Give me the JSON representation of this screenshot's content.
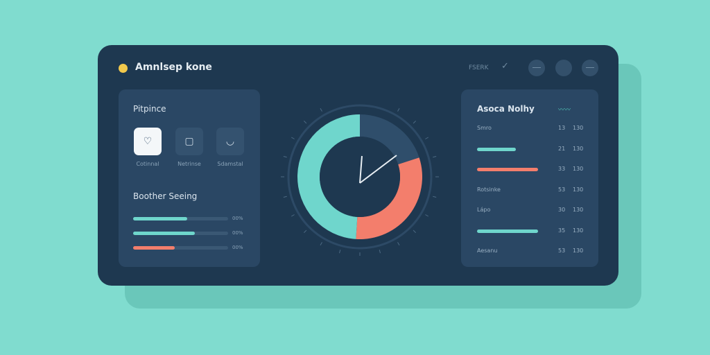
{
  "app": {
    "title": "Amnlsep kone",
    "status": "FSERK",
    "colors": {
      "background": "#80dccf",
      "card": "#1e3850",
      "panel": "#2a4764",
      "teal": "#6fd6cc",
      "coral": "#f37e6c",
      "yellow": "#f2c94c"
    }
  },
  "header": {
    "icons": [
      "check-icon",
      "circle-button",
      "circle-button",
      "circle-button"
    ]
  },
  "left_panel": {
    "title": "Pitpince",
    "tiles": [
      {
        "label": "Cotinnal",
        "icon": "heart-outline-icon",
        "active": true
      },
      {
        "label": "Netrinse",
        "icon": "device-icon",
        "active": false
      },
      {
        "label": "Sdamstal",
        "icon": "wave-icon",
        "active": false
      }
    ],
    "section_title": "Boother Seeing",
    "bars": [
      {
        "value": 0.57,
        "color": "#6fd6cc",
        "label": "00%"
      },
      {
        "value": 0.65,
        "color": "#6fd6cc",
        "label": "00%"
      },
      {
        "value": 0.44,
        "color": "#f37e6c",
        "label": "00%"
      }
    ]
  },
  "dial": {
    "segments": [
      {
        "color": "#2f4e6b",
        "fraction": 0.2
      },
      {
        "color": "#f37e6c",
        "fraction": 0.31
      },
      {
        "color": "#6fd6cc",
        "fraction": 0.49
      }
    ]
  },
  "right_panel": {
    "title": "Asoca Nolhy",
    "rows": [
      {
        "label": "Smro",
        "bar": null,
        "n": "13",
        "v": "130"
      },
      {
        "label": "",
        "bar": {
          "color": "#6fd6cc",
          "value": 0.35
        },
        "n": "21",
        "v": "130"
      },
      {
        "label": "",
        "bar": {
          "color": "#f37e6c",
          "value": 0.55
        },
        "n": "33",
        "v": "130"
      },
      {
        "label": "Rotsinke",
        "bar": null,
        "n": "53",
        "v": "130"
      },
      {
        "label": "Lápo",
        "bar": null,
        "n": "30",
        "v": "130"
      },
      {
        "label": "",
        "bar": {
          "color": "#6fd6cc",
          "value": 0.55
        },
        "n": "35",
        "v": "130"
      },
      {
        "label": "Aesanu",
        "bar": null,
        "n": "53",
        "v": "130"
      }
    ]
  }
}
